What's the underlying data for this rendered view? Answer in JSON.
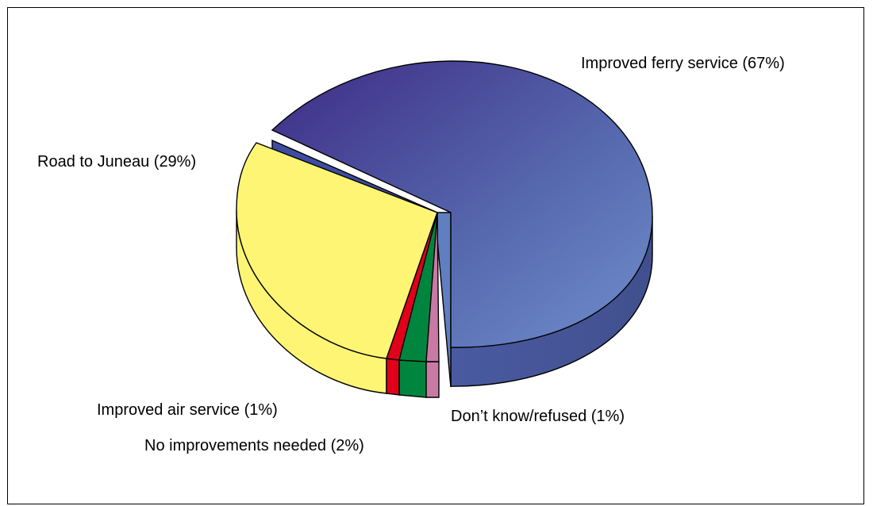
{
  "chart_data": {
    "type": "pie",
    "style": "3d-exploded",
    "slices": [
      {
        "label": "Improved ferry service (67%)",
        "value": 67,
        "color": "#5a6eb4",
        "exploded": false
      },
      {
        "label": "Don’t know/refused (1%)",
        "value": 1,
        "color": "#c87aa4",
        "exploded": true
      },
      {
        "label": "No improvements needed (2%)",
        "value": 2,
        "color": "#00853f",
        "exploded": true
      },
      {
        "label": "Improved air service (1%)",
        "value": 1,
        "color": "#e0001a",
        "exploded": true
      },
      {
        "label": "Road to Juneau (29%)",
        "value": 29,
        "color": "#fef575",
        "exploded": true
      }
    ]
  }
}
